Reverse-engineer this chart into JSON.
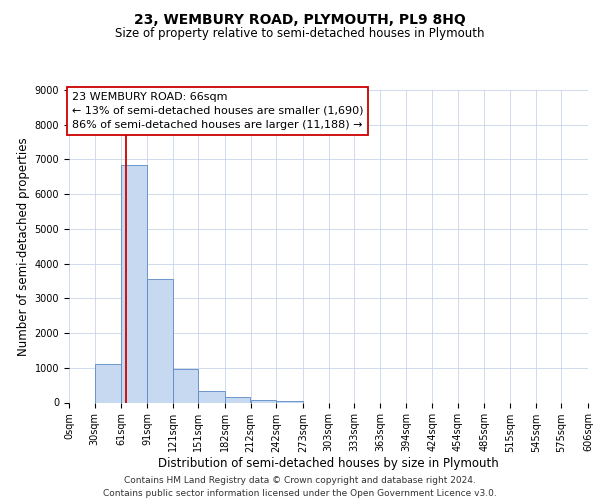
{
  "title": "23, WEMBURY ROAD, PLYMOUTH, PL9 8HQ",
  "subtitle": "Size of property relative to semi-detached houses in Plymouth",
  "xlabel": "Distribution of semi-detached houses by size in Plymouth",
  "ylabel": "Number of semi-detached properties",
  "bar_left_edges": [
    0,
    30,
    61,
    91,
    121,
    151,
    182,
    212,
    242,
    273,
    303,
    333,
    363,
    394,
    424,
    454,
    485,
    515,
    545,
    575
  ],
  "bar_widths": [
    30,
    31,
    30,
    30,
    30,
    31,
    30,
    30,
    31,
    30,
    30,
    30,
    31,
    30,
    30,
    31,
    30,
    30,
    30,
    31
  ],
  "bar_heights": [
    0,
    1100,
    6850,
    3550,
    975,
    340,
    150,
    80,
    50,
    0,
    0,
    0,
    0,
    0,
    0,
    0,
    0,
    0,
    0,
    0
  ],
  "bar_color": "#c6d9f0",
  "bar_edge_color": "#5a8ac6",
  "property_line_x": 66,
  "property_line_color": "#cc0000",
  "ylim": [
    0,
    9000
  ],
  "yticks": [
    0,
    1000,
    2000,
    3000,
    4000,
    5000,
    6000,
    7000,
    8000,
    9000
  ],
  "x_tick_labels": [
    "0sqm",
    "30sqm",
    "61sqm",
    "91sqm",
    "121sqm",
    "151sqm",
    "182sqm",
    "212sqm",
    "242sqm",
    "273sqm",
    "303sqm",
    "333sqm",
    "363sqm",
    "394sqm",
    "424sqm",
    "454sqm",
    "485sqm",
    "515sqm",
    "545sqm",
    "575sqm",
    "606sqm"
  ],
  "xlim": [
    0,
    606
  ],
  "annotation_title": "23 WEMBURY ROAD: 66sqm",
  "annotation_line1": "← 13% of semi-detached houses are smaller (1,690)",
  "annotation_line2": "86% of semi-detached houses are larger (11,188) →",
  "annotation_box_color": "#ffffff",
  "annotation_box_edge": "#cc0000",
  "footer_line1": "Contains HM Land Registry data © Crown copyright and database right 2024.",
  "footer_line2": "Contains public sector information licensed under the Open Government Licence v3.0.",
  "bg_color": "#ffffff",
  "grid_color": "#c8d4e8",
  "title_fontsize": 10,
  "subtitle_fontsize": 8.5,
  "axis_label_fontsize": 8.5,
  "tick_fontsize": 7,
  "annotation_fontsize": 8,
  "footer_fontsize": 6.5
}
